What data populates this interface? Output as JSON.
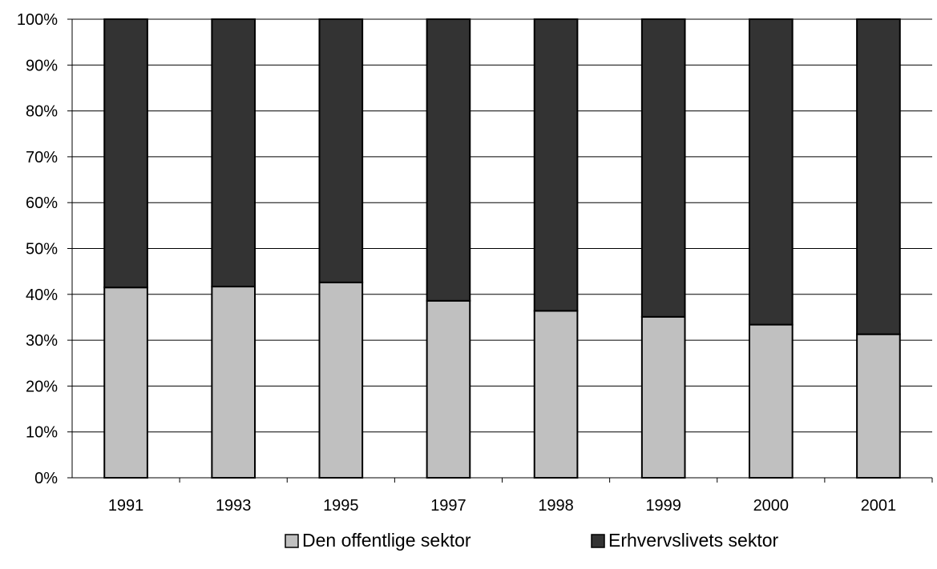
{
  "chart_data": {
    "type": "bar",
    "stacked": true,
    "percent_stacked": true,
    "categories": [
      "1991",
      "1993",
      "1995",
      "1997",
      "1998",
      "1999",
      "2000",
      "2001"
    ],
    "series": [
      {
        "name": "Den offentlige sektor",
        "color": "#c0c0c0",
        "values": [
          41.5,
          41.7,
          42.6,
          38.6,
          36.4,
          35.1,
          33.4,
          31.3
        ]
      },
      {
        "name": "Erhvervslivets sektor",
        "color": "#333333",
        "values": [
          58.5,
          58.3,
          57.4,
          61.4,
          63.6,
          64.9,
          66.6,
          68.7
        ]
      }
    ],
    "y_ticks": [
      "0%",
      "10%",
      "20%",
      "30%",
      "40%",
      "50%",
      "60%",
      "70%",
      "80%",
      "90%",
      "100%"
    ],
    "ylim": [
      0,
      100
    ],
    "grid": true,
    "legend_position": "bottom",
    "title": "",
    "xlabel": "",
    "ylabel": ""
  }
}
